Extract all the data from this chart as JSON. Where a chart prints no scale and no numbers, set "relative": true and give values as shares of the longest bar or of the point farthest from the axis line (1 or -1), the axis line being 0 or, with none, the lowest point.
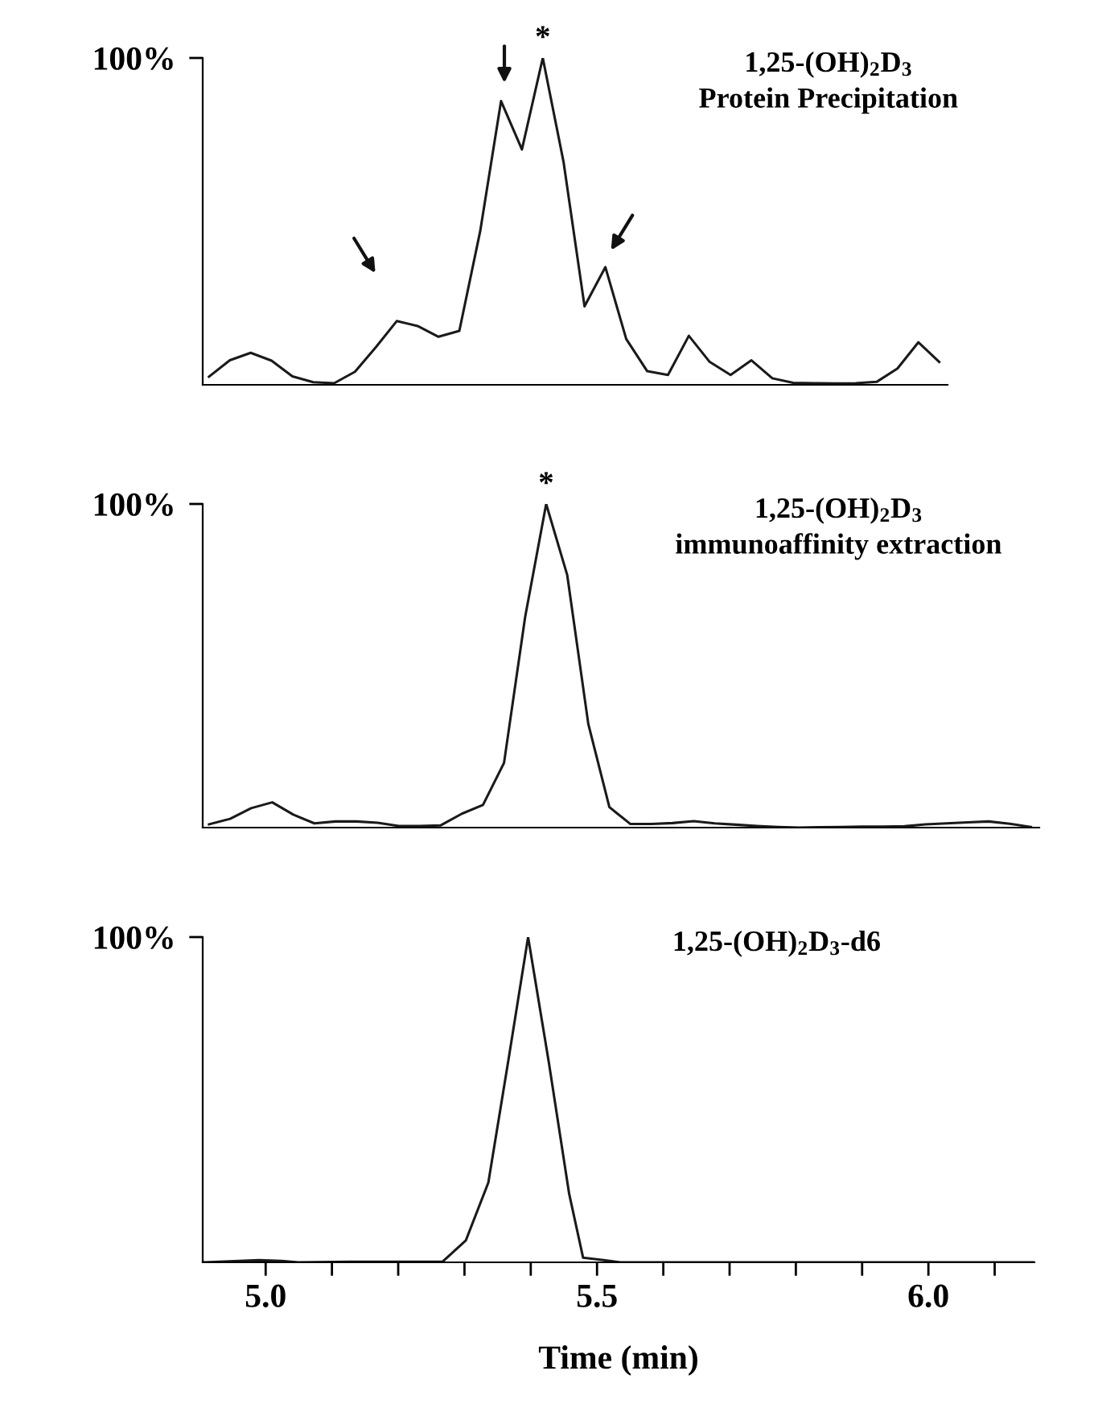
{
  "chart_data": [
    {
      "type": "line",
      "title": "1,25-(OH)$_{2}$D$_{3}$",
      "subtitle": "Protein Precipitation",
      "relative": true,
      "tick_labels": false,
      "color": "#1a1a1a",
      "categories": [
        null,
        null,
        null,
        null,
        null,
        null,
        null,
        null,
        null,
        null,
        null,
        null,
        null,
        null,
        null,
        null,
        null,
        null,
        null,
        null,
        null,
        null,
        null,
        null,
        null,
        null,
        null,
        null,
        null,
        null,
        null,
        null,
        null,
        null,
        null,
        null
      ],
      "values": [
        0.025,
        0.075,
        0.098,
        0.074,
        0.026,
        0.008,
        0.005,
        0.04,
        0.115,
        0.195,
        0.18,
        0.147,
        0.165,
        0.47,
        0.868,
        0.72,
        1.0,
        0.68,
        0.24,
        0.36,
        0.14,
        0.042,
        0.03,
        0.15,
        0.07,
        0.03,
        0.075,
        0.02,
        0.006,
        0.005,
        0.004,
        0.005,
        0.009,
        0.05,
        0.13,
        0.07
      ],
      "annotations": [
        "100%",
        "*"
      ]
    },
    {
      "type": "line",
      "title": "1,25-(OH)$_{2}$D$_{3}$",
      "subtitle": "immunoaffinity extraction",
      "relative": true,
      "tick_labels": false,
      "color": "#1a1a1a",
      "categories": [
        null,
        null,
        null,
        null,
        null,
        null,
        null,
        null,
        null,
        null,
        null,
        null,
        null,
        null,
        null,
        null,
        null,
        null,
        null,
        null,
        null,
        null,
        null,
        null,
        null,
        null,
        null,
        null,
        null,
        null,
        null,
        null,
        null,
        null,
        null,
        null,
        null,
        null,
        null,
        null
      ],
      "values": [
        0.01,
        0.027,
        0.06,
        0.078,
        0.04,
        0.013,
        0.019,
        0.019,
        0.015,
        0.005,
        0.005,
        0.007,
        0.043,
        0.07,
        0.2,
        0.65,
        1.0,
        0.78,
        0.32,
        0.063,
        0.011,
        0.011,
        0.014,
        0.02,
        0.013,
        0.009,
        0.005,
        0.002,
        0,
        0.001,
        0.002,
        0.003,
        0.003,
        0.004,
        0.01,
        0.013,
        0.016,
        0.019,
        0.012,
        0.002
      ],
      "annotations": [
        "100%",
        "*"
      ]
    },
    {
      "type": "line",
      "title": "1,25-(OH)$_{2}$D$_{3}$-d6",
      "xlabel": "Time (min)",
      "relative": true,
      "xlim": [
        4.905,
        6.16
      ],
      "tick_labels": "x",
      "color": "#1a1a1a",
      "xticks": [
        {
          "value": 5.0,
          "label": "5.0"
        },
        {
          "value": 5.1,
          "label": null
        },
        {
          "value": 5.2,
          "label": null
        },
        {
          "value": 5.3,
          "label": null
        },
        {
          "value": 5.4,
          "label": null
        },
        {
          "value": 5.5,
          "label": "5.5"
        },
        {
          "value": 5.6,
          "label": null
        },
        {
          "value": 5.7,
          "label": null
        },
        {
          "value": 5.8,
          "label": null
        },
        {
          "value": 5.9,
          "label": null
        },
        {
          "value": 6.0,
          "label": "6.0"
        },
        {
          "value": 6.1,
          "label": null
        }
      ],
      "x": [
        4.905,
        4.99,
        5.024,
        5.049,
        5.128,
        5.267,
        5.302,
        5.336,
        5.366,
        5.396,
        5.427,
        5.458,
        5.479,
        5.51,
        5.535,
        6.16
      ],
      "values": [
        0,
        0.007,
        0.004,
        0,
        0.002,
        0.002,
        0.067,
        0.245,
        0.618,
        1.0,
        0.618,
        0.21,
        0.014,
        0.007,
        0,
        0
      ],
      "annotations": [
        "100%"
      ]
    }
  ]
}
